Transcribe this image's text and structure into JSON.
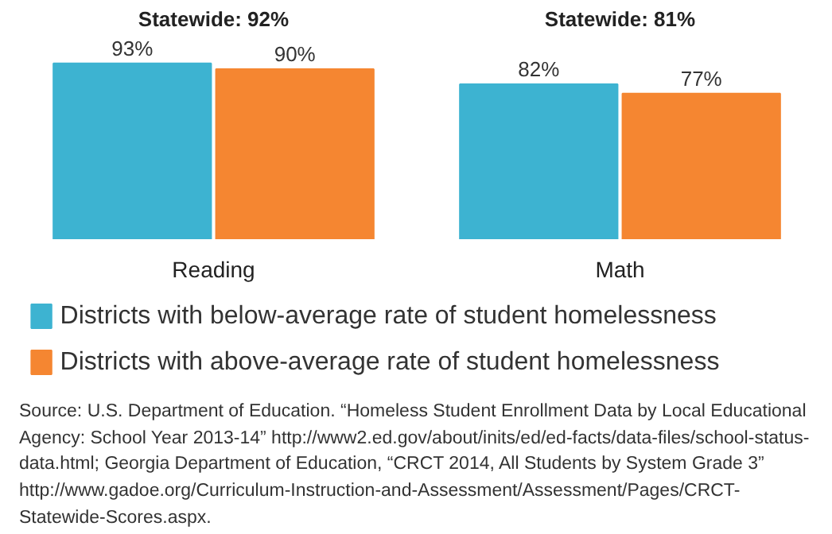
{
  "chart_data": {
    "type": "bar",
    "categories": [
      "Reading",
      "Math"
    ],
    "legend": "bottom",
    "series": [
      {
        "name": "Districts with below-average rate of student homelessness",
        "color": "#3db3d1",
        "values": [
          93,
          82
        ],
        "value_labels": [
          "93%",
          "82%"
        ]
      },
      {
        "name": "Districts with above-average rate of student homelessness",
        "color": "#f58631",
        "values": [
          90,
          77
        ],
        "value_labels": [
          "90%",
          "77%"
        ]
      }
    ],
    "annotations": [
      "Statewide: 92%",
      "Statewide: 81%",
      "Source: U.S. Department of Education. “Homeless Student Enrollment Data by Local Educational Agency: School Year 2013-14” http://www2.ed.gov/about/inits/ed/ed-facts/data-files/school-status-data.html; Georgia Department of Education, “CRCT 2014, All Students by System Grade 3” http://www.gadoe.org/Curriculum-Instruction-and-Assessment/Assessment/Pages/CRCT-Statewide-Scores.aspx."
    ]
  }
}
